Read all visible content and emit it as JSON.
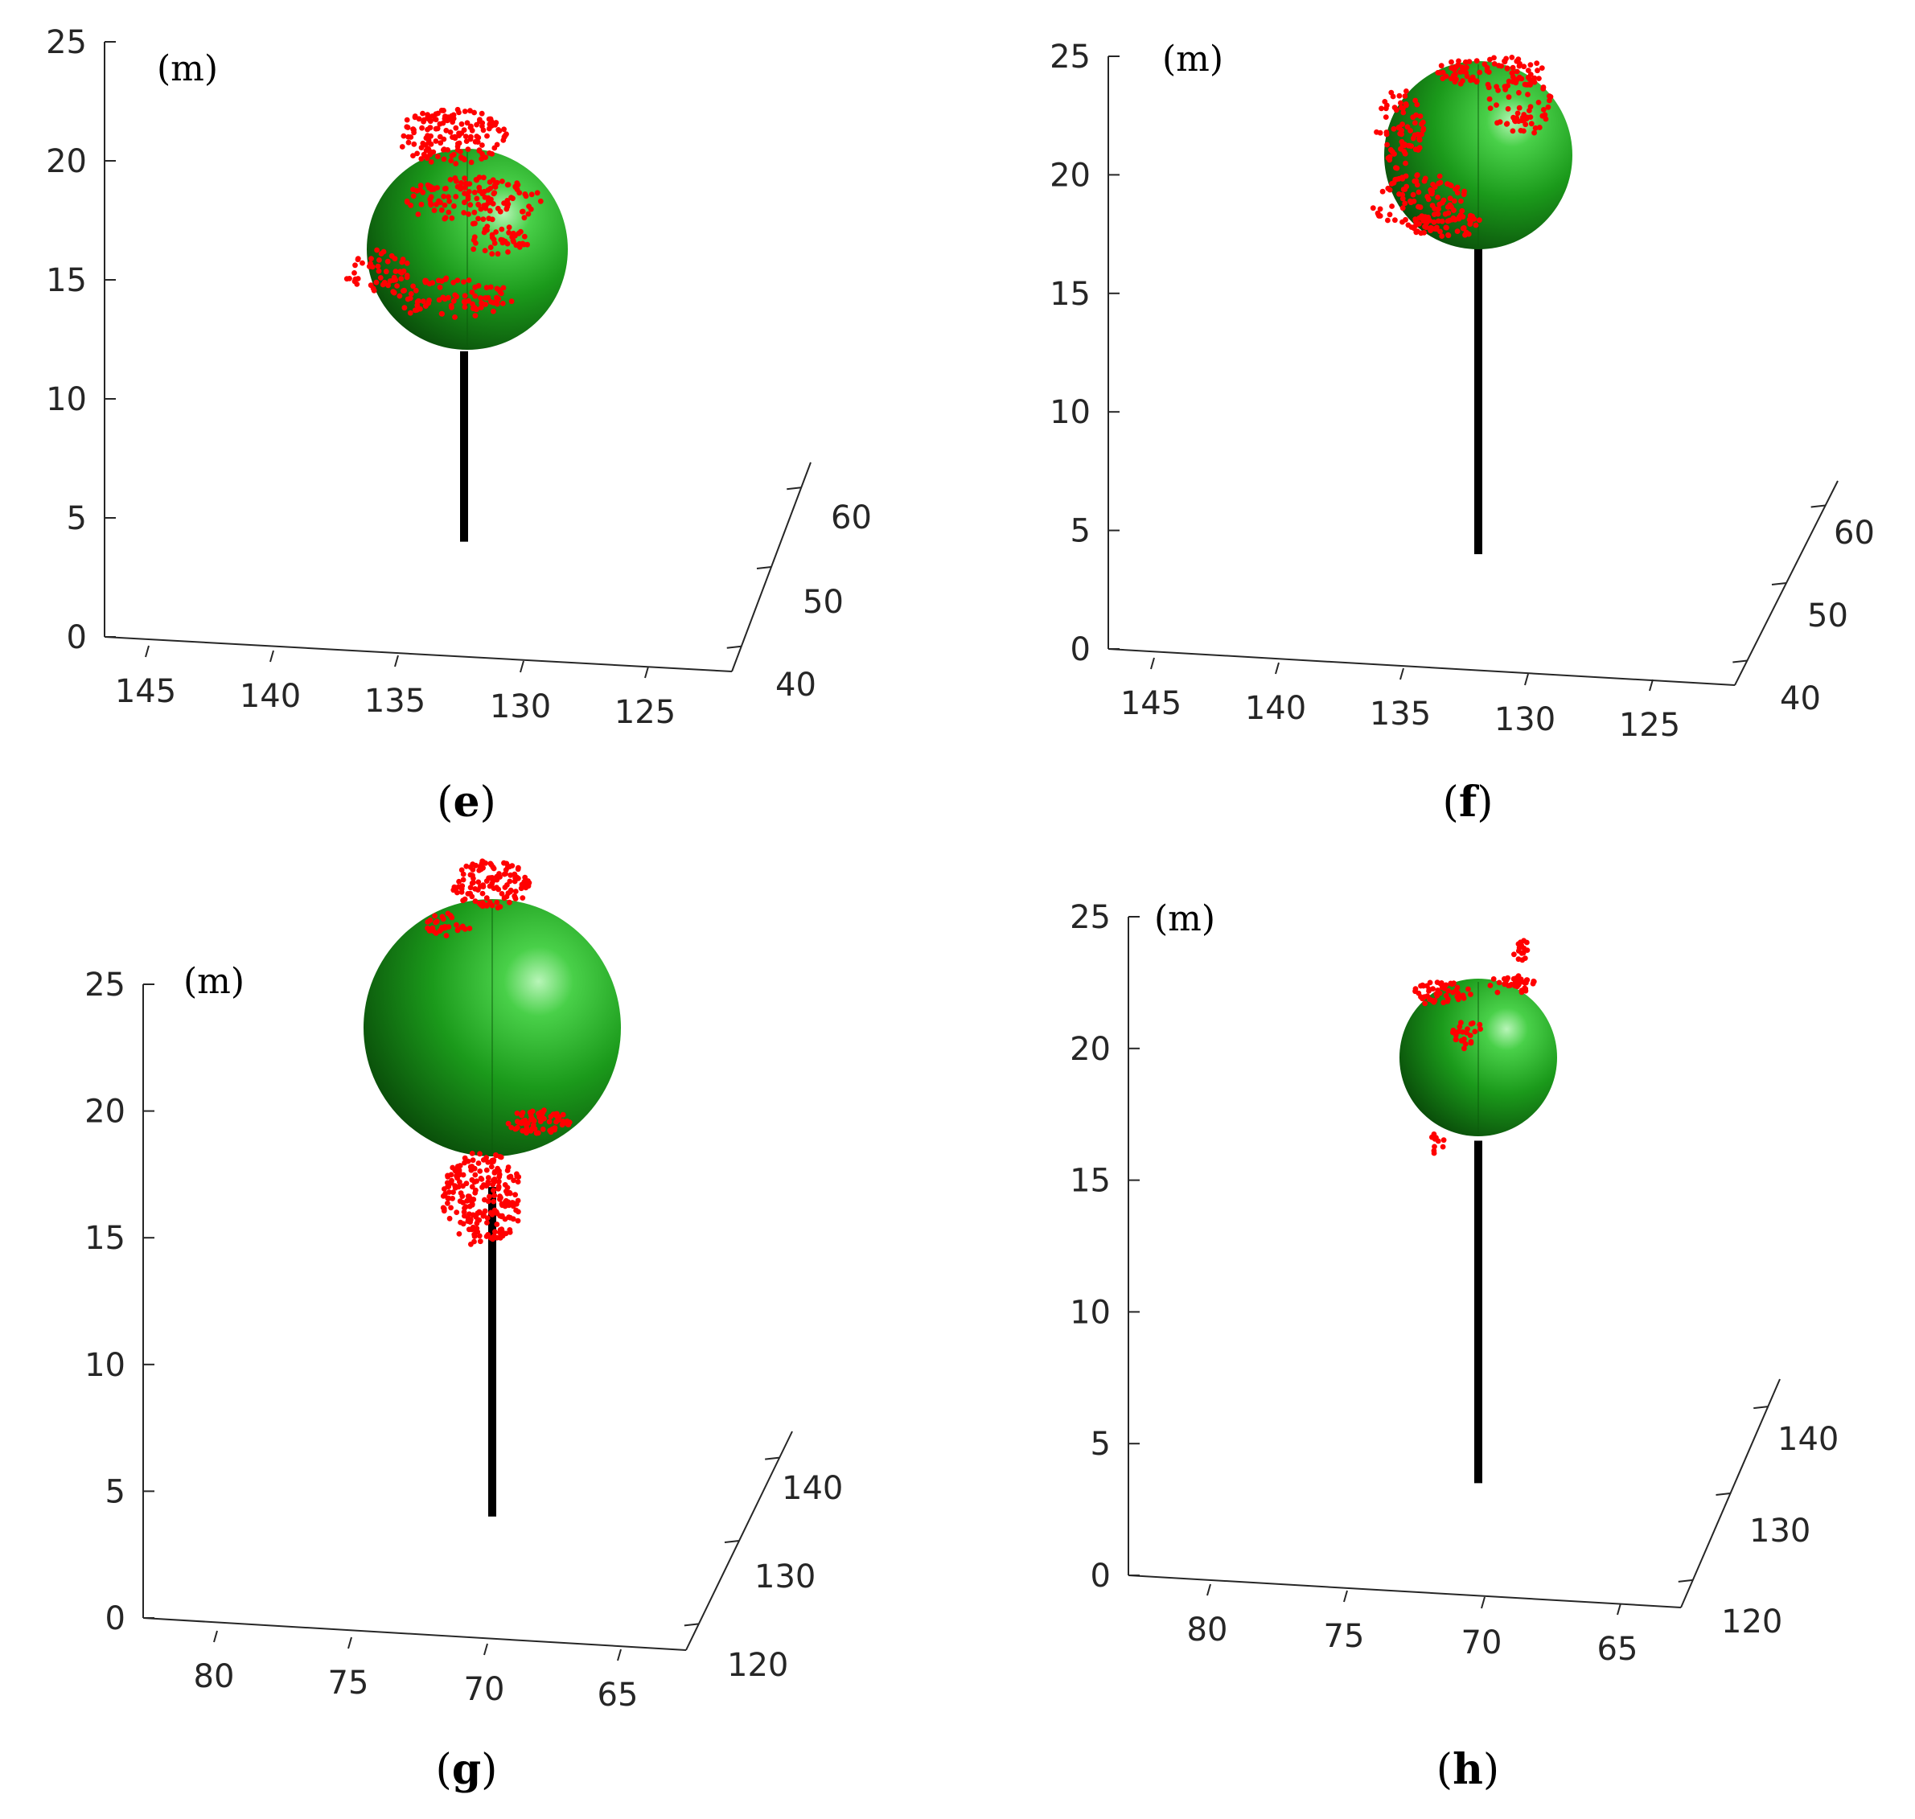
{
  "chart_data": [
    {
      "type": "scatter",
      "panel": "e",
      "caption": "e",
      "unit_label": "(m)",
      "z_ticks": [
        "0",
        "5",
        "10",
        "15",
        "20",
        "25"
      ],
      "x_ticks": [
        "145",
        "140",
        "135",
        "130",
        "125"
      ],
      "y_ticks": [
        "40",
        "50",
        "60"
      ],
      "zlim": [
        0,
        25
      ],
      "trunk": {
        "z_bottom": 4,
        "z_top": 12
      },
      "sphere": {
        "z_center": 16.3,
        "radius": 4.2
      },
      "points_color": "#ff0000",
      "sphere_color": "#1fa81f"
    },
    {
      "type": "scatter",
      "panel": "f",
      "caption": "f",
      "unit_label": "(m)",
      "z_ticks": [
        "0",
        "5",
        "10",
        "15",
        "20",
        "25"
      ],
      "x_ticks": [
        "145",
        "140",
        "135",
        "130",
        "125"
      ],
      "y_ticks": [
        "40",
        "50",
        "60"
      ],
      "zlim": [
        0,
        25
      ],
      "trunk": {
        "z_bottom": 4,
        "z_top": 17
      },
      "sphere": {
        "z_center": 21,
        "radius": 4.0
      },
      "points_color": "#ff0000",
      "sphere_color": "#1fa81f"
    },
    {
      "type": "scatter",
      "panel": "g",
      "caption": "g",
      "unit_label": "(m)",
      "z_ticks": [
        "0",
        "5",
        "10",
        "15",
        "20",
        "25"
      ],
      "x_ticks": [
        "80",
        "75",
        "70",
        "65"
      ],
      "y_ticks": [
        "120",
        "130",
        "140"
      ],
      "zlim": [
        0,
        25
      ],
      "trunk": {
        "z_bottom": 4,
        "z_top": 17
      },
      "sphere": {
        "z_center": 23,
        "radius": 5.0
      },
      "points_color": "#ff0000",
      "sphere_color": "#1fa81f"
    },
    {
      "type": "scatter",
      "panel": "h",
      "caption": "h",
      "unit_label": "(m)",
      "z_ticks": [
        "0",
        "5",
        "10",
        "15",
        "20",
        "25"
      ],
      "x_ticks": [
        "80",
        "75",
        "70",
        "65"
      ],
      "y_ticks": [
        "120",
        "130",
        "140"
      ],
      "zlim": [
        0,
        25
      ],
      "trunk": {
        "z_bottom": 3.5,
        "z_top": 16.5
      },
      "sphere": {
        "z_center": 19.6,
        "radius": 3.0
      },
      "points_color": "#ff0000",
      "sphere_color": "#1fa81f"
    }
  ]
}
